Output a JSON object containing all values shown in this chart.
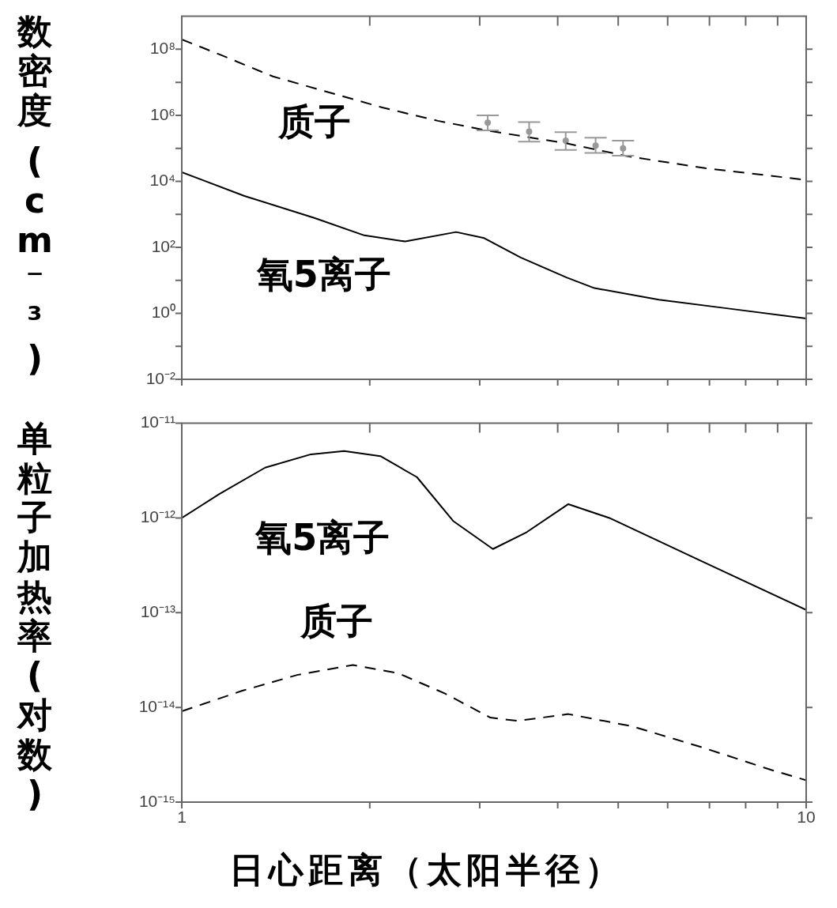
{
  "chart_data": [
    {
      "type": "line",
      "ylabel": "数密度 (cm⁻³)",
      "log": "xy",
      "grid": false,
      "legend": false,
      "tick_labels": "y",
      "xlim": [
        1,
        10
      ],
      "ylim": [
        0.01,
        1000000000
      ],
      "xticks": [
        {
          "value": 1,
          "label": null
        },
        {
          "value": 2,
          "label": null
        },
        {
          "value": 3,
          "label": null
        },
        {
          "value": 4,
          "label": null
        },
        {
          "value": 5,
          "label": null
        },
        {
          "value": 6,
          "label": null
        },
        {
          "value": 7,
          "label": null
        },
        {
          "value": 8,
          "label": null
        },
        {
          "value": 9,
          "label": null
        },
        {
          "value": 10,
          "label": null
        }
      ],
      "yticks": [
        {
          "value": 0.01,
          "label": "10⁻²"
        },
        {
          "value": 0.1,
          "label": null
        },
        {
          "value": 1,
          "label": "10⁰"
        },
        {
          "value": 10,
          "label": null
        },
        {
          "value": 100,
          "label": "10²"
        },
        {
          "value": 1000,
          "label": null
        },
        {
          "value": 10000,
          "label": "10⁴"
        },
        {
          "value": 100000,
          "label": null
        },
        {
          "value": 1000000,
          "label": "10⁶"
        },
        {
          "value": 10000000,
          "label": null
        },
        {
          "value": 100000000,
          "label": "10⁸"
        }
      ],
      "series": [
        {
          "name": "质子",
          "type": "line",
          "line_style": "dashed",
          "marker": "none",
          "color": "#000000",
          "x": [
            1,
            1.16,
            1.4,
            2.1,
            2.57,
            3.1,
            4.14,
            5.16,
            6.89,
            10
          ],
          "values": [
            199000000,
            65000000,
            15000000,
            1700000,
            680000,
            340000,
            140000,
            58000,
            25000,
            11000
          ]
        },
        {
          "name": "氧5离子",
          "type": "line",
          "line_style": "solid",
          "marker": "none",
          "color": "#000000",
          "x": [
            1,
            1.26,
            1.63,
            1.96,
            2.28,
            2.75,
            3.05,
            3.49,
            4.14,
            4.58,
            5.81,
            7.5,
            10
          ],
          "values": [
            18800,
            3600,
            780,
            230,
            150,
            290,
            190,
            49,
            12,
            5.8,
            2.6,
            1.4,
            0.7
          ]
        },
        {
          "type": "scatter",
          "marker": "circle",
          "color": "#999999",
          "x": [
            3.09,
            3.6,
            4.12,
            4.6,
            5.09
          ],
          "values": [
            600000,
            320000,
            170000,
            120000,
            100000
          ],
          "errors": [
            [
              350000,
              1000000
            ],
            [
              160000,
              620000
            ],
            [
              89000,
              310000
            ],
            [
              72000,
              210000
            ],
            [
              60000,
              170000
            ]
          ]
        }
      ]
    },
    {
      "type": "line",
      "ylabel": "单粒子加热率(对数)",
      "xlabel": "日心距离（太阳半径）",
      "log": "xy",
      "grid": false,
      "legend": false,
      "xlim": [
        1,
        10
      ],
      "ylim": [
        1e-15,
        1e-11
      ],
      "xticks": [
        {
          "value": 1,
          "label": "1"
        },
        {
          "value": 2,
          "label": null
        },
        {
          "value": 3,
          "label": null
        },
        {
          "value": 4,
          "label": null
        },
        {
          "value": 5,
          "label": null
        },
        {
          "value": 6,
          "label": null
        },
        {
          "value": 7,
          "label": null
        },
        {
          "value": 8,
          "label": null
        },
        {
          "value": 9,
          "label": null
        },
        {
          "value": 10,
          "label": "10"
        }
      ],
      "yticks": [
        {
          "value": 1e-15,
          "label": "10⁻¹⁵"
        },
        {
          "value": 1e-14,
          "label": "10⁻¹⁴"
        },
        {
          "value": 1e-13,
          "label": "10⁻¹³"
        },
        {
          "value": 1e-12,
          "label": "10⁻¹²"
        },
        {
          "value": 1e-11,
          "label": "10⁻¹¹"
        }
      ],
      "series": [
        {
          "name": "氧5离子",
          "type": "line",
          "line_style": "solid",
          "marker": "none",
          "color": "#000000",
          "x": [
            1,
            1.15,
            1.36,
            1.61,
            1.82,
            2.08,
            2.38,
            2.72,
            3.15,
            3.57,
            4.16,
            4.84,
            6.8,
            10
          ],
          "values": [
            1e-12,
            1.8e-12,
            3.4e-12,
            4.7e-12,
            5.1e-12,
            4.5e-12,
            2.7e-12,
            9.3e-13,
            4.7e-13,
            7.1e-13,
            1.4e-12,
            1e-12,
            3.5e-13,
            1.07e-13
          ]
        },
        {
          "name": "质子",
          "type": "line",
          "line_style": "dashed",
          "marker": "none",
          "color": "#000000",
          "x": [
            1,
            1.25,
            1.53,
            1.88,
            2.22,
            2.64,
            3.12,
            3.45,
            4.16,
            5.27,
            6.8,
            8.77,
            10
          ],
          "values": [
            9.1e-15,
            1.5e-14,
            2.2e-14,
            2.8e-14,
            2.3e-14,
            1.4e-14,
            7.8e-15,
            7.2e-15,
            8.5e-15,
            6.3e-15,
            3.8e-15,
            2.2e-15,
            1.7e-15
          ]
        }
      ]
    }
  ]
}
